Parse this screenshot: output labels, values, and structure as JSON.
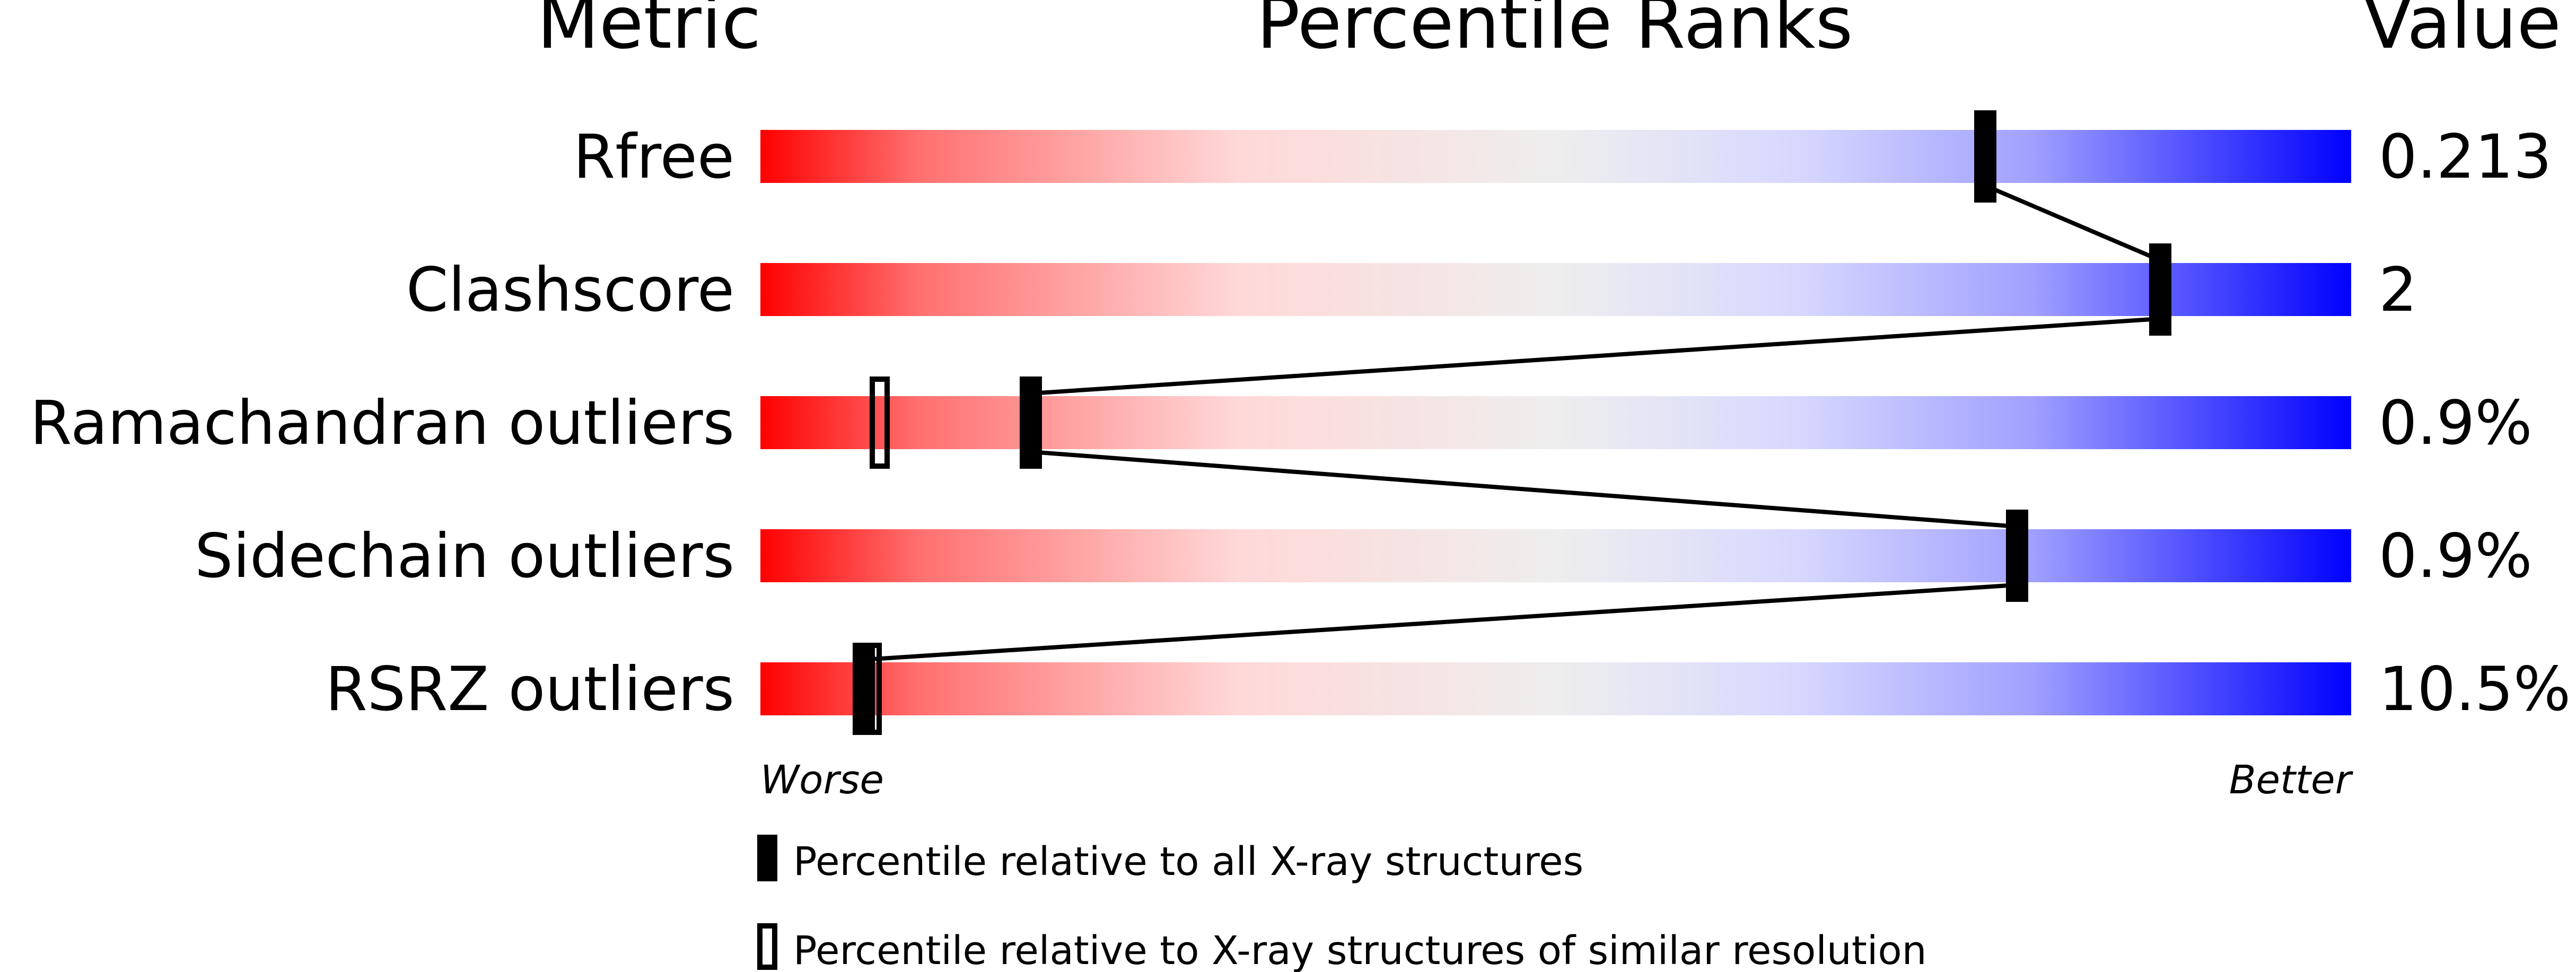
{
  "chart_data": {
    "type": "percentile-slider",
    "headers": {
      "metric": "Metric",
      "percentile": "Percentile Ranks",
      "value": "Value"
    },
    "axis": {
      "min_label": "Worse",
      "max_label": "Better",
      "range": [
        0,
        100
      ]
    },
    "gradient_colors": [
      "#ff0000",
      "#ff7070",
      "#ffd8d8",
      "#eeeeee",
      "#d8d8ff",
      "#a0a0ff",
      "#0000ff"
    ],
    "metrics": [
      {
        "name": "Rfree",
        "value": "0.213",
        "percentile_all": 77,
        "percentile_similar": null
      },
      {
        "name": "Clashscore",
        "value": "2",
        "percentile_all": 88,
        "percentile_similar": null
      },
      {
        "name": "Ramachandran outliers",
        "value": "0.9%",
        "percentile_all": 17,
        "percentile_similar": 7.5
      },
      {
        "name": "Sidechain outliers",
        "value": "0.9%",
        "percentile_all": 79,
        "percentile_similar": null
      },
      {
        "name": "RSRZ outliers",
        "value": "10.5%",
        "percentile_all": 6.5,
        "percentile_similar": 7
      }
    ],
    "legend": [
      {
        "marker": "filled",
        "label": "Percentile relative to all X-ray structures"
      },
      {
        "marker": "hollow",
        "label": "Percentile relative to X-ray structures of similar resolution"
      }
    ]
  }
}
